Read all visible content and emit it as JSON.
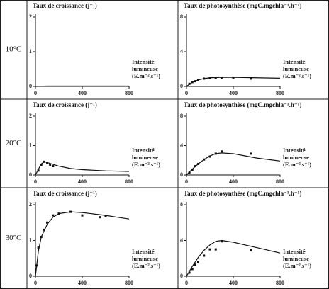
{
  "row_labels": [
    "10°C",
    "20°C",
    "30°C"
  ],
  "chart_data": [
    {
      "type": "scatter",
      "title": "Taux de croissance (j⁻¹)",
      "xlabel": [
        "Intensité",
        "lumineuse",
        "(E.m⁻².s⁻¹)"
      ],
      "xlim": [
        0,
        800
      ],
      "xticks": [
        0,
        400,
        800
      ],
      "ylim": [
        0,
        2
      ],
      "yticks": [
        0,
        1,
        2
      ],
      "series": [
        {
          "type": "line",
          "color": "#111",
          "x": [
            0,
            100,
            400,
            800
          ],
          "values": [
            0,
            0.01,
            0.01,
            0.01
          ]
        }
      ]
    },
    {
      "type": "scatter",
      "title": "Taux de photosynthèse (mgC.mgchla⁻¹.h⁻¹)",
      "xlabel": [
        "Intensité",
        "lumineuse",
        "(E.m⁻².s⁻¹)"
      ],
      "xlim": [
        0,
        800
      ],
      "xticks": [
        0,
        400,
        800
      ],
      "ylim": [
        0,
        8
      ],
      "yticks": [
        0,
        4,
        8
      ],
      "series": [
        {
          "type": "line",
          "color": "#111",
          "x": [
            0,
            50,
            100,
            150,
            200,
            300,
            400,
            600,
            800
          ],
          "values": [
            0,
            0.5,
            0.75,
            0.9,
            1,
            1.05,
            1.05,
            1.0,
            0.95
          ]
        },
        {
          "type": "scatter",
          "color": "#111",
          "x": [
            25,
            50,
            75,
            100,
            150,
            200,
            250,
            300,
            400,
            550
          ],
          "values": [
            0.3,
            0.5,
            0.6,
            0.7,
            0.9,
            1,
            1,
            1,
            1,
            0.9
          ]
        }
      ]
    },
    {
      "type": "scatter",
      "title": "Taux de croissance (j⁻¹)",
      "xlabel": [
        "Intensité",
        "lumineuse",
        "(E.m⁻².s⁻¹)"
      ],
      "xlim": [
        0,
        800
      ],
      "xticks": [
        0,
        400,
        800
      ],
      "ylim": [
        0,
        2
      ],
      "yticks": [
        0,
        1,
        2
      ],
      "series": [
        {
          "type": "line",
          "color": "#111",
          "x": [
            0,
            50,
            80,
            120,
            200,
            300,
            400,
            600,
            800
          ],
          "values": [
            0,
            0.38,
            0.45,
            0.4,
            0.3,
            0.22,
            0.18,
            0.14,
            0.12
          ]
        },
        {
          "type": "scatter",
          "color": "#111",
          "x": [
            25,
            50,
            75,
            100,
            125,
            150
          ],
          "values": [
            0.15,
            0.35,
            0.45,
            0.4,
            0.35,
            0.3
          ]
        }
      ]
    },
    {
      "type": "scatter",
      "title": "Taux de photosynthèse (mgC.mgchla⁻¹.h⁻¹)",
      "xlabel": [
        "Intensité",
        "lumineuse",
        "(E.m⁻².s⁻¹)"
      ],
      "xlim": [
        0,
        800
      ],
      "xticks": [
        0,
        400,
        800
      ],
      "ylim": [
        0,
        8
      ],
      "yticks": [
        0,
        4,
        8
      ],
      "series": [
        {
          "type": "line",
          "color": "#111",
          "x": [
            0,
            50,
            100,
            150,
            200,
            250,
            300,
            400,
            500,
            600,
            800
          ],
          "values": [
            0,
            0.8,
            1.5,
            2.1,
            2.6,
            2.9,
            3.0,
            2.9,
            2.6,
            2.3,
            1.9
          ]
        },
        {
          "type": "scatter",
          "color": "#111",
          "x": [
            25,
            50,
            75,
            100,
            150,
            200,
            250,
            300,
            550
          ],
          "values": [
            0.3,
            0.7,
            1.2,
            1.5,
            2.1,
            2.5,
            2.9,
            3.2,
            2.9
          ]
        }
      ]
    },
    {
      "type": "scatter",
      "title": "Taux de croissance (j⁻¹)",
      "xlabel": [
        "Intensité",
        "lumineuse",
        "(E.m⁻².s⁻¹)"
      ],
      "xlim": [
        0,
        800
      ],
      "xticks": [
        0,
        400,
        800
      ],
      "ylim": [
        0,
        2
      ],
      "yticks": [
        0,
        1,
        2
      ],
      "series": [
        {
          "type": "line",
          "color": "#111",
          "x": [
            0,
            25,
            50,
            100,
            150,
            200,
            300,
            400,
            500,
            600,
            700,
            800
          ],
          "values": [
            0,
            0.7,
            1.1,
            1.45,
            1.65,
            1.75,
            1.8,
            1.78,
            1.74,
            1.7,
            1.65,
            1.6
          ]
        },
        {
          "type": "scatter",
          "color": "#111",
          "x": [
            10,
            25,
            50,
            75,
            100,
            150,
            200,
            300,
            400,
            550,
            600
          ],
          "values": [
            0.3,
            0.8,
            1.1,
            1.3,
            1.5,
            1.7,
            1.75,
            1.8,
            1.7,
            1.65,
            1.68
          ]
        }
      ]
    },
    {
      "type": "scatter",
      "title": "Taux de photosynthèse (mgC.mgchla⁻¹.h⁻¹)",
      "xlabel": [
        "Intensité",
        "lumineuse",
        "(E.m⁻².s⁻¹)"
      ],
      "xlim": [
        0,
        800
      ],
      "xticks": [
        0,
        400,
        800
      ],
      "ylim": [
        0,
        8
      ],
      "yticks": [
        0,
        4,
        8
      ],
      "series": [
        {
          "type": "line",
          "color": "#111",
          "x": [
            0,
            50,
            100,
            150,
            200,
            250,
            300,
            400,
            500,
            600,
            800
          ],
          "values": [
            0,
            1.1,
            2.1,
            2.9,
            3.5,
            3.9,
            4.0,
            3.8,
            3.5,
            3.2,
            2.6
          ]
        },
        {
          "type": "scatter",
          "color": "#111",
          "x": [
            25,
            50,
            75,
            100,
            150,
            200,
            250,
            300,
            550
          ],
          "values": [
            0.4,
            0.8,
            1.3,
            1.6,
            2.3,
            3.0,
            3.0,
            3.9,
            2.9
          ]
        }
      ]
    }
  ]
}
